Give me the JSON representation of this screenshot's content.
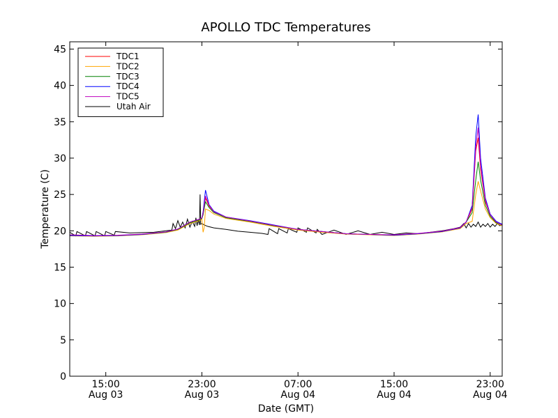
{
  "chart_data": {
    "type": "line",
    "title": "APOLLO TDC Temperatures",
    "xlabel": "Date (GMT)",
    "ylabel": "Temperature (C)",
    "ylim": [
      0,
      46
    ],
    "yticks": [
      0,
      5,
      10,
      15,
      20,
      25,
      30,
      35,
      40,
      45
    ],
    "xlim_hours": [
      12,
      48
    ],
    "xticks": [
      {
        "hour": 15,
        "line1": "15:00",
        "line2": "Aug 03"
      },
      {
        "hour": 23,
        "line1": "23:00",
        "line2": "Aug 03"
      },
      {
        "hour": 31,
        "line1": "07:00",
        "line2": "Aug 04"
      },
      {
        "hour": 39,
        "line1": "15:00",
        "line2": "Aug 04"
      },
      {
        "hour": 47,
        "line1": "23:00",
        "line2": "Aug 04"
      }
    ],
    "x_hours_note": "hours since 00:00 Aug 03 (GMT)",
    "legend_position": "upper-left",
    "series": [
      {
        "name": "TDC1",
        "color": "#ff0000",
        "x": [
          12,
          14,
          16,
          18,
          20,
          21,
          22,
          22.8,
          23.0,
          23.1,
          23.3,
          23.6,
          24,
          25,
          27,
          29,
          31,
          33,
          35,
          37,
          39,
          41,
          43,
          44.5,
          45,
          45.5,
          45.8,
          46.0,
          46.2,
          46.6,
          47,
          47.5,
          48
        ],
        "y": [
          19.4,
          19.3,
          19.35,
          19.5,
          19.8,
          20.2,
          21.2,
          21.6,
          21.8,
          22.5,
          24.5,
          23.4,
          22.6,
          21.8,
          21.3,
          20.7,
          20.2,
          19.9,
          19.6,
          19.5,
          19.4,
          19.6,
          19.9,
          20.4,
          21.2,
          23.0,
          31.0,
          32.8,
          28.5,
          24.0,
          22.2,
          21.2,
          20.8
        ]
      },
      {
        "name": "TDC2",
        "color": "#ffa500",
        "x": [
          12,
          14,
          16,
          18,
          20,
          21,
          22,
          22.8,
          23.0,
          23.1,
          23.2,
          23.3,
          23.6,
          24,
          25,
          27,
          29,
          31,
          33,
          35,
          37,
          39,
          41,
          43,
          44.5,
          45,
          45.5,
          45.8,
          46.0,
          46.2,
          46.6,
          47,
          47.5,
          48
        ],
        "y": [
          19.3,
          19.25,
          19.3,
          19.45,
          19.75,
          20.1,
          21.0,
          21.4,
          21.6,
          19.8,
          20.5,
          23.0,
          22.8,
          22.3,
          21.7,
          21.2,
          20.6,
          20.1,
          19.8,
          19.55,
          19.45,
          19.35,
          19.55,
          19.85,
          20.3,
          21.0,
          21.3,
          25.0,
          26.8,
          25.5,
          23.0,
          21.8,
          21.0,
          20.7
        ]
      },
      {
        "name": "TDC3",
        "color": "#008000",
        "x": [
          12,
          14,
          16,
          18,
          20,
          21,
          22,
          22.8,
          23.0,
          23.1,
          23.3,
          23.6,
          24,
          25,
          27,
          29,
          31,
          33,
          35,
          37,
          39,
          41,
          43,
          44.5,
          45,
          45.5,
          45.8,
          46.0,
          46.2,
          46.6,
          47,
          47.5,
          48
        ],
        "y": [
          19.4,
          19.3,
          19.35,
          19.5,
          19.8,
          20.2,
          21.1,
          21.5,
          21.7,
          22.2,
          24.0,
          23.2,
          22.5,
          21.8,
          21.3,
          20.7,
          20.2,
          19.9,
          19.6,
          19.5,
          19.4,
          19.6,
          19.9,
          20.4,
          21.2,
          22.5,
          27.0,
          29.5,
          27.0,
          23.5,
          22.0,
          21.1,
          20.8
        ]
      },
      {
        "name": "TDC4",
        "color": "#0000ff",
        "x": [
          12,
          14,
          16,
          18,
          20,
          21,
          22,
          22.8,
          23.0,
          23.1,
          23.3,
          23.6,
          24,
          25,
          27,
          29,
          31,
          33,
          35,
          37,
          39,
          41,
          43,
          44.5,
          45,
          45.5,
          45.8,
          46.0,
          46.2,
          46.6,
          47,
          47.5,
          48
        ],
        "y": [
          19.35,
          19.3,
          19.35,
          19.5,
          19.85,
          20.25,
          21.2,
          21.6,
          21.8,
          22.6,
          25.6,
          23.6,
          22.7,
          21.9,
          21.4,
          20.8,
          20.2,
          19.9,
          19.6,
          19.5,
          19.4,
          19.6,
          19.9,
          20.4,
          21.2,
          23.5,
          33.0,
          36.0,
          30.0,
          24.5,
          22.3,
          21.3,
          20.9
        ]
      },
      {
        "name": "TDC5",
        "color": "#bf00bf",
        "x": [
          12,
          14,
          16,
          18,
          20,
          21,
          22,
          22.8,
          23.0,
          23.1,
          23.3,
          23.6,
          24,
          25,
          27,
          29,
          31,
          33,
          35,
          37,
          39,
          41,
          43,
          44.5,
          45,
          45.5,
          45.8,
          46.0,
          46.2,
          46.6,
          47,
          47.5,
          48
        ],
        "y": [
          19.45,
          19.35,
          19.4,
          19.55,
          19.85,
          20.25,
          21.2,
          21.6,
          21.8,
          22.4,
          24.8,
          23.5,
          22.6,
          21.9,
          21.35,
          20.75,
          20.2,
          19.9,
          19.6,
          19.5,
          19.45,
          19.65,
          19.95,
          20.45,
          21.25,
          23.2,
          31.5,
          34.2,
          29.0,
          24.2,
          22.2,
          21.2,
          20.8
        ]
      },
      {
        "name": "Utah Air",
        "color": "#000000",
        "x": [
          12,
          12.5,
          12.6,
          13.3,
          13.4,
          14.1,
          14.2,
          14.9,
          15.0,
          15.7,
          15.8,
          17,
          19,
          20,
          20.5,
          20.6,
          20.8,
          21.0,
          21.2,
          21.4,
          21.6,
          21.8,
          22.0,
          22.2,
          22.4,
          22.5,
          22.6,
          22.7,
          22.8,
          22.85,
          22.9,
          23.0,
          23.2,
          23.5,
          24,
          25,
          26,
          27,
          28,
          28.5,
          28.6,
          29.3,
          29.4,
          30.1,
          30.2,
          30.9,
          31.0,
          31.7,
          31.8,
          32.5,
          32.6,
          33,
          34,
          35,
          36,
          37,
          38,
          39,
          40,
          41,
          42,
          43,
          44,
          44.5,
          44.8,
          45.0,
          45.2,
          45.4,
          45.6,
          45.8,
          46.0,
          46.2,
          46.4,
          46.6,
          46.8,
          47.0,
          47.2,
          47.4,
          47.6,
          47.8,
          48
        ],
        "y": [
          19.8,
          19.3,
          19.9,
          19.3,
          19.9,
          19.3,
          19.9,
          19.3,
          19.9,
          19.4,
          19.9,
          19.7,
          19.8,
          20.0,
          20.1,
          21.0,
          20.3,
          21.4,
          20.5,
          21.2,
          20.4,
          21.6,
          20.5,
          21.3,
          20.6,
          21.8,
          20.7,
          21.5,
          20.8,
          25.0,
          20.9,
          21.0,
          20.8,
          20.6,
          20.4,
          20.2,
          19.95,
          19.8,
          19.65,
          19.5,
          20.3,
          19.6,
          20.3,
          19.7,
          20.3,
          19.8,
          20.4,
          19.8,
          20.4,
          19.7,
          20.2,
          19.5,
          20.1,
          19.5,
          20.0,
          19.5,
          19.8,
          19.5,
          19.7,
          19.6,
          19.8,
          20.0,
          20.3,
          20.5,
          21.0,
          20.4,
          21.0,
          20.5,
          20.9,
          20.6,
          21.2,
          20.5,
          20.9,
          20.6,
          21.0,
          20.5,
          20.9,
          20.6,
          21.0,
          20.7,
          20.8
        ]
      }
    ]
  }
}
